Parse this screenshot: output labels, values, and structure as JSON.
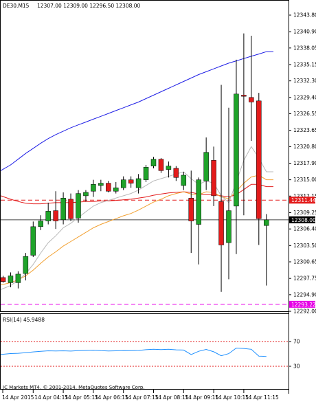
{
  "header": {
    "symbol": "DE30.M15",
    "ohlc": "12307.00 12309.00 12296.50 12308.00"
  },
  "main_chart": {
    "y_range": [
      12292.0,
      12345.0
    ],
    "y_ticks": [
      "12343.80",
      "12340.90",
      "12338.05",
      "12335.15",
      "12332.30",
      "12329.40",
      "12326.55",
      "12323.65",
      "12320.80",
      "12317.90",
      "12315.00",
      "12312.15",
      "12309.25",
      "12306.40",
      "12303.50",
      "12300.65",
      "12297.75",
      "12294.90",
      "12292.00"
    ],
    "price_line": {
      "value": 12308.0,
      "label": "12308.00"
    },
    "red_level": {
      "value": 12311.44,
      "label": "12311.44"
    },
    "magenta_level": {
      "value": 12293.22,
      "label": "12293.22"
    },
    "colors": {
      "bull": "#1fa32a",
      "bear": "#e31b1b",
      "wick": "#000000",
      "ma_blue": "#1e1ee6",
      "ma_red": "#e31b1b",
      "ma_orange": "#f2a030",
      "ma_gray": "#b8b8b8",
      "level_red": "#e31b1b",
      "level_magenta": "#e600e6"
    },
    "candles": [
      {
        "o": 12297.9,
        "h": 12298.2,
        "l": 12297.0,
        "c": 12297.2
      },
      {
        "o": 12297.0,
        "h": 12298.8,
        "l": 12296.2,
        "c": 12298.2
      },
      {
        "o": 12297.0,
        "h": 12299.0,
        "l": 12296.0,
        "c": 12298.5
      },
      {
        "o": 12298.6,
        "h": 12302.2,
        "l": 12297.4,
        "c": 12301.6
      },
      {
        "o": 12301.8,
        "h": 12307.7,
        "l": 12301.5,
        "c": 12306.8
      },
      {
        "o": 12306.8,
        "h": 12308.8,
        "l": 12306.2,
        "c": 12307.8
      },
      {
        "o": 12307.8,
        "h": 12311.0,
        "l": 12307.2,
        "c": 12309.5
      },
      {
        "o": 12309.6,
        "h": 12313.0,
        "l": 12306.4,
        "c": 12307.8
      },
      {
        "o": 12308.0,
        "h": 12312.8,
        "l": 12307.2,
        "c": 12311.8
      },
      {
        "o": 12311.6,
        "h": 12312.6,
        "l": 12307.8,
        "c": 12308.2
      },
      {
        "o": 12308.3,
        "h": 12313.2,
        "l": 12307.5,
        "c": 12312.6
      },
      {
        "o": 12312.2,
        "h": 12313.2,
        "l": 12311.2,
        "c": 12312.8
      },
      {
        "o": 12313.0,
        "h": 12315.0,
        "l": 12312.0,
        "c": 12314.2
      },
      {
        "o": 12314.0,
        "h": 12315.0,
        "l": 12313.0,
        "c": 12314.4
      },
      {
        "o": 12314.4,
        "h": 12314.8,
        "l": 12312.8,
        "c": 12313.0
      },
      {
        "o": 12313.0,
        "h": 12314.6,
        "l": 12312.6,
        "c": 12313.6
      },
      {
        "o": 12313.6,
        "h": 12315.6,
        "l": 12313.2,
        "c": 12315.0
      },
      {
        "o": 12315.0,
        "h": 12315.6,
        "l": 12313.6,
        "c": 12314.4
      },
      {
        "o": 12313.6,
        "h": 12316.0,
        "l": 12312.6,
        "c": 12315.2
      },
      {
        "o": 12315.0,
        "h": 12317.6,
        "l": 12314.6,
        "c": 12317.2
      },
      {
        "o": 12317.4,
        "h": 12319.0,
        "l": 12317.0,
        "c": 12318.6
      },
      {
        "o": 12318.6,
        "h": 12318.8,
        "l": 12316.2,
        "c": 12316.6
      },
      {
        "o": 12316.8,
        "h": 12318.2,
        "l": 12315.4,
        "c": 12317.4
      },
      {
        "o": 12317.0,
        "h": 12317.4,
        "l": 12314.8,
        "c": 12315.4
      },
      {
        "o": 12314.0,
        "h": 12316.4,
        "l": 12313.2,
        "c": 12315.8
      },
      {
        "o": 12311.8,
        "h": 12316.6,
        "l": 12302.2,
        "c": 12307.8
      },
      {
        "o": 12307.2,
        "h": 12315.4,
        "l": 12300.2,
        "c": 12315.0
      },
      {
        "o": 12314.8,
        "h": 12322.4,
        "l": 12313.2,
        "c": 12319.8
      },
      {
        "o": 12318.4,
        "h": 12320.8,
        "l": 12310.4,
        "c": 12312.2
      },
      {
        "o": 12311.2,
        "h": 12331.6,
        "l": 12295.4,
        "c": 12303.6
      },
      {
        "o": 12304.0,
        "h": 12327.6,
        "l": 12297.6,
        "c": 12309.6
      },
      {
        "o": 12310.4,
        "h": 12336.0,
        "l": 12302.0,
        "c": 12330.0
      },
      {
        "o": 12329.8,
        "h": 12340.6,
        "l": 12308.8,
        "c": 12329.6
      },
      {
        "o": 12329.4,
        "h": 12340.2,
        "l": 12321.8,
        "c": 12328.6
      },
      {
        "o": 12328.8,
        "h": 12330.2,
        "l": 12303.6,
        "c": 12308.2
      },
      {
        "o": 12307.0,
        "h": 12309.0,
        "l": 12296.5,
        "c": 12308.0
      }
    ],
    "ma_blue": [
      12316.6,
      12317.6,
      12318.6,
      12319.6,
      12320.5,
      12321.4,
      12322.2,
      12322.9,
      12323.5,
      12324.1,
      12324.6,
      12325.1,
      12325.6,
      12326.1,
      12326.6,
      12327.1,
      12327.6,
      12328.1,
      12328.6,
      12329.2,
      12329.8,
      12330.4,
      12331.0,
      12331.6,
      12332.2,
      12332.8,
      12333.4,
      12333.9,
      12334.4,
      12334.9,
      12335.4,
      12335.8,
      12336.2,
      12336.6,
      12337.0,
      12337.4
    ],
    "ma_red": [
      12312.2,
      12311.6,
      12311.2,
      12310.9,
      12310.8,
      12310.8,
      12310.9,
      12311.0,
      12311.0,
      12311.0,
      12311.1,
      12311.2,
      12311.2,
      12311.3,
      12311.3,
      12311.4,
      12311.5,
      12311.6,
      12311.8,
      12312.0,
      12312.3,
      12312.5,
      12312.7,
      12312.8,
      12312.9,
      12312.8,
      12312.5,
      12312.4,
      12312.4,
      12312.2,
      12312.0,
      12312.4,
      12313.3,
      12314.2,
      12314.2,
      12313.8
    ],
    "ma_orange": [
      12296.6,
      12297.0,
      12297.5,
      12298.2,
      12299.2,
      12300.4,
      12301.5,
      12302.4,
      12303.4,
      12304.2,
      12305.0,
      12305.8,
      12306.6,
      12307.2,
      12307.7,
      12308.2,
      12308.7,
      12309.1,
      12309.7,
      12310.4,
      12311.1,
      12311.6,
      12312.2,
      12312.6,
      12312.9,
      12312.5,
      12312.4,
      12312.9,
      12312.8,
      12312.0,
      12311.7,
      12313.0,
      12314.4,
      12315.5,
      12315.8,
      12315.0
    ],
    "ma_gray": [
      12295.8,
      12296.5,
      12297.4,
      12298.6,
      12300.2,
      12302.2,
      12304.0,
      12305.2,
      12306.6,
      12307.4,
      12308.4,
      12309.4,
      12310.4,
      12311.0,
      12311.4,
      12311.8,
      12312.2,
      12312.6,
      12313.2,
      12314.0,
      12314.8,
      12315.2,
      12315.6,
      12316.0,
      12316.4,
      12315.2,
      12314.2,
      12314.8,
      12314.4,
      12312.2,
      12311.0,
      12314.6,
      12318.4,
      12320.8,
      12318.8,
      12316.4
    ]
  },
  "rsi_panel": {
    "label": "RSI(14) 45.9488",
    "y_range": [
      0,
      100
    ],
    "levels": [
      {
        "value": 70,
        "label": "70"
      },
      {
        "value": 30,
        "label": "30"
      }
    ],
    "line_color": "#1e90ff",
    "values": [
      49.0,
      50.5,
      51.0,
      52.0,
      53.2,
      54.2,
      55.0,
      54.8,
      55.0,
      54.6,
      55.2,
      55.6,
      56.0,
      55.2,
      54.8,
      55.0,
      55.4,
      55.2,
      55.6,
      56.8,
      57.6,
      57.0,
      57.4,
      56.6,
      56.2,
      49.0,
      54.2,
      57.2,
      53.4,
      47.0,
      50.4,
      59.4,
      58.8,
      57.4,
      46.4,
      45.9
    ]
  },
  "footer": {
    "copyright": "IC Markets MT4, © 2001-2014, MetaQuotes Software Corp."
  },
  "x_axis": {
    "labels": [
      "14 Apr 2015",
      "14 Apr 04:15",
      "14 Apr 05:15",
      "14 Apr 06:15",
      "14 Apr 07:15",
      "14 Apr 08:15",
      "14 Apr 09:15",
      "14 Apr 10:15",
      "14 Apr 11:15"
    ]
  }
}
